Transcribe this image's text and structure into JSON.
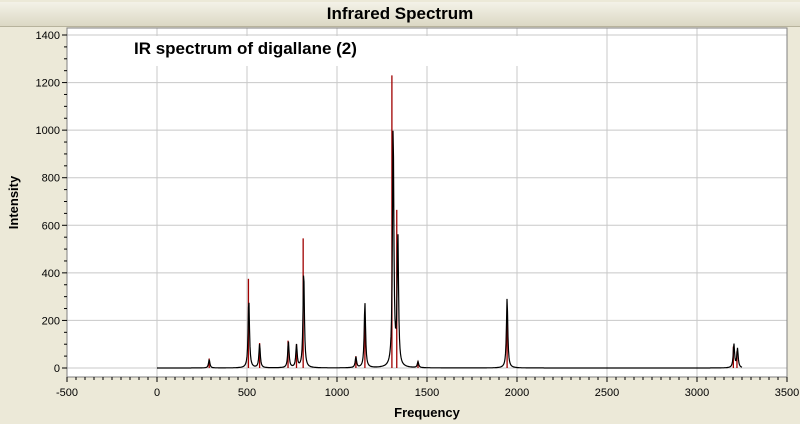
{
  "window": {
    "title": "Infrared Spectrum"
  },
  "chart_data": {
    "type": "line",
    "title": "Infrared Spectrum",
    "annotation": "IR spectrum of digallane (2)",
    "xlabel": "Frequency",
    "ylabel": "Intensity",
    "xlim": [
      -500,
      3500
    ],
    "ylim": [
      0,
      1400
    ],
    "x_ticks": [
      -500,
      0,
      500,
      1000,
      1500,
      2000,
      2500,
      3000,
      3500
    ],
    "y_ticks": [
      0,
      200,
      400,
      600,
      800,
      1000,
      1200,
      1400
    ],
    "x_range": [
      0,
      3250
    ],
    "grid": true,
    "legend": "none",
    "series": [
      {
        "type": "line",
        "color": "#000000",
        "peaks": [
          {
            "x": 290,
            "y": 35
          },
          {
            "x": 510,
            "y": 290
          },
          {
            "x": 570,
            "y": 100
          },
          {
            "x": 730,
            "y": 110
          },
          {
            "x": 775,
            "y": 95
          },
          {
            "x": 815,
            "y": 410
          },
          {
            "x": 1105,
            "y": 45
          },
          {
            "x": 1155,
            "y": 275
          },
          {
            "x": 1312,
            "y": 1020
          },
          {
            "x": 1338,
            "y": 555
          },
          {
            "x": 1450,
            "y": 25
          },
          {
            "x": 1945,
            "y": 295
          },
          {
            "x": 3205,
            "y": 100
          },
          {
            "x": 3225,
            "y": 80
          }
        ]
      },
      {
        "type": "stick",
        "color": "#a00000",
        "sticks": [
          {
            "x": 290,
            "y": 40
          },
          {
            "x": 508,
            "y": 375
          },
          {
            "x": 570,
            "y": 105
          },
          {
            "x": 728,
            "y": 115
          },
          {
            "x": 775,
            "y": 100
          },
          {
            "x": 812,
            "y": 545
          },
          {
            "x": 1105,
            "y": 50
          },
          {
            "x": 1155,
            "y": 215
          },
          {
            "x": 1305,
            "y": 1230
          },
          {
            "x": 1332,
            "y": 665
          },
          {
            "x": 1450,
            "y": 30
          },
          {
            "x": 1945,
            "y": 245
          },
          {
            "x": 3202,
            "y": 90
          },
          {
            "x": 3222,
            "y": 70
          }
        ]
      }
    ]
  },
  "colors": {
    "background": "#ece9d8",
    "plot_background": "#ffffff",
    "grid": "#c8c8c8",
    "envelope": "#000000",
    "sticks": "#a00000"
  }
}
